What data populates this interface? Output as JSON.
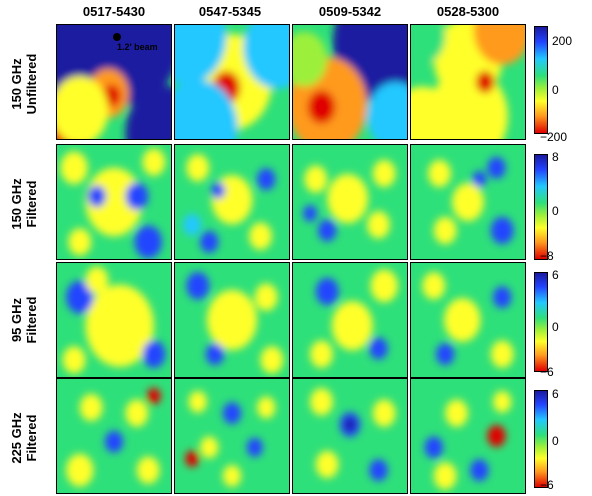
{
  "columns": [
    "0517-5430",
    "0547-5345",
    "0509-5342",
    "0528-5300"
  ],
  "rows": [
    {
      "line1": "150 GHz",
      "line2": "Unfiltered",
      "ticks": [
        "200",
        "0",
        "−200"
      ]
    },
    {
      "line1": "150 GHz",
      "line2": "Filtered",
      "ticks": [
        "8",
        "0",
        "−8"
      ]
    },
    {
      "line1": "95 GHz",
      "line2": "Filtered",
      "ticks": [
        "6",
        "0",
        "−6"
      ]
    },
    {
      "line1": "225 GHz",
      "line2": "Filtered",
      "ticks": [
        "6",
        "0",
        "−6"
      ]
    }
  ],
  "beam_label": "1.2′ beam",
  "colormap": [
    "#1a1aa0",
    "#2244ff",
    "#22c8ff",
    "#2ee07a",
    "#9cf03a",
    "#ffff2a",
    "#ff9a1e",
    "#e00000"
  ]
}
